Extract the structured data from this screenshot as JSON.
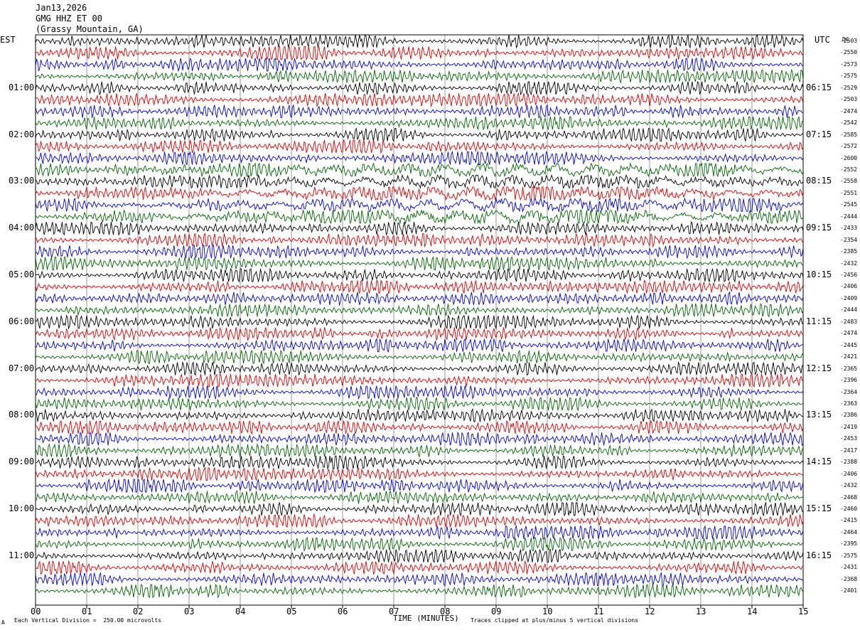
{
  "header": {
    "date": "Jan13,2026",
    "station": "GMG HHZ ET 00",
    "location": "(Grassy Mountain, GA)"
  },
  "labels": {
    "left_tz": "EST",
    "right_tz": "UTC",
    "dc": "DC",
    "xlabel": "TIME (MINUTES)",
    "footnote_mark": "A",
    "scale_note": "Each Vertical Division =  250.00 microvolts",
    "clip_note": "Traces clipped at plus/minus 5 vertical divisions"
  },
  "chart_data": {
    "type": "line",
    "subtype": "helicorder",
    "x_range": [
      0,
      15
    ],
    "x_ticks": [
      "00",
      "01",
      "02",
      "03",
      "04",
      "05",
      "06",
      "07",
      "08",
      "09",
      "10",
      "11",
      "12",
      "13",
      "14",
      "15"
    ],
    "trace_colors": [
      "#000000",
      "#dd0000",
      "#0000dd",
      "#006600"
    ],
    "rows_per_hour": 4,
    "left_hour_labels": [
      "01:00",
      "02:00",
      "03:00",
      "04:00",
      "05:00",
      "06:00",
      "07:00",
      "08:00",
      "09:00",
      "10:00",
      "11:00"
    ],
    "right_hour_labels": [
      "06:15",
      "07:15",
      "08:15",
      "09:15",
      "10:15",
      "11:15",
      "12:15",
      "13:15",
      "14:15",
      "15:15",
      "16:15"
    ],
    "dc_offsets": [
      "-2503",
      "-2550",
      "-2573",
      "-2575",
      "-2529",
      "-2503",
      "-2474",
      "-2542",
      "-2585",
      "-2572",
      "-2600",
      "-2552",
      "-2558",
      "-2551",
      "-2545",
      "-2444",
      "-2433",
      "-2354",
      "-2385",
      "-2432",
      "-2456",
      "-2406",
      "-2409",
      "-2444",
      "-2483",
      "-2474",
      "-2445",
      "-2421",
      "-2365",
      "-2396",
      "-2364",
      "-2363",
      "-2386",
      "-2419",
      "-2453",
      "-2417",
      "-2388",
      "-2406",
      "-2432",
      "-2468",
      "-2460",
      "-2415",
      "-2464",
      "-2395",
      "-2575",
      "-2431",
      "-2368",
      "-2401"
    ],
    "event_rows": [
      11,
      12,
      13,
      14,
      15
    ],
    "ylabel_units": "microvolts",
    "vertical_division_microvolts": 250.0,
    "clip_divisions": 5
  }
}
